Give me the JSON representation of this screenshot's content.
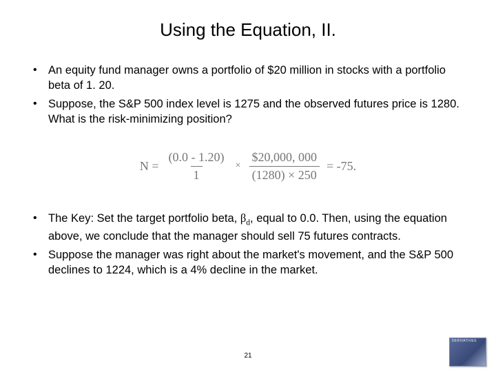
{
  "title": "Using the Equation, II.",
  "bullets_top": [
    "An equity fund manager owns a portfolio of $20 million in stocks with a portfolio beta of 1. 20.",
    "Suppose, the S&P 500 index level is 1275 and the observed futures price is 1280. What is the risk-minimizing position?"
  ],
  "equation": {
    "lhs": "N =",
    "frac1_num": "(0.0 - 1.20)",
    "frac1_den": "1",
    "mult": "×",
    "frac2_num": "$20,000, 000",
    "frac2_den": "(1280) × 250",
    "rhs": "= -75."
  },
  "bullets_bottom_1_pre": "The Key: Set the target portfolio beta, ",
  "bullets_bottom_1_beta": "β",
  "bullets_bottom_1_sub": "d",
  "bullets_bottom_1_post": ", equal to 0.0. Then, using the equation above, we conclude that the manager should sell 75 futures contracts.",
  "bullets_bottom_2": "Suppose the manager was right about the market's movement, and the S&P 500 declines to 1224, which is a 4% decline in the market.",
  "page_number": "21",
  "thumb_label": "DERIVATIVES",
  "colors": {
    "text": "#000000",
    "equation": "#777777",
    "background": "#ffffff"
  }
}
